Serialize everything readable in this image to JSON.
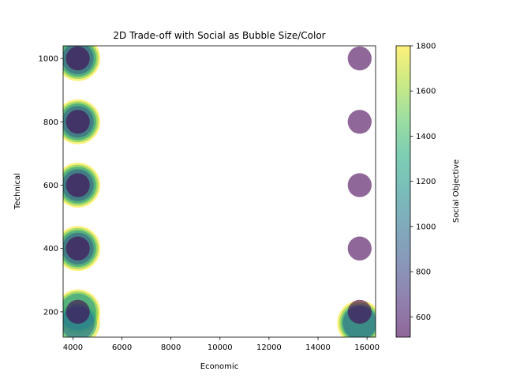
{
  "chart_data": {
    "type": "scatter",
    "title": "2D Trade-off with Social as Bubble Size/Color",
    "xlabel": "Economic",
    "ylabel": "Technical",
    "xlim": [
      3600,
      16350
    ],
    "ylim": [
      120,
      1040
    ],
    "x_ticks": [
      4000,
      6000,
      8000,
      10000,
      12000,
      14000,
      16000
    ],
    "y_ticks": [
      200,
      400,
      600,
      800,
      1000
    ],
    "grid": false,
    "colorbar": {
      "label": "Social Objective",
      "range": [
        510,
        1800
      ],
      "ticks": [
        600,
        800,
        1000,
        1200,
        1400,
        1600,
        1800
      ],
      "colormap": "viridis",
      "alpha": 0.6
    },
    "size_encoding": "Social Objective",
    "points": [
      {
        "x": 4200,
        "y": 1000,
        "social": 1800
      },
      {
        "x": 4200,
        "y": 1000,
        "social": 1500
      },
      {
        "x": 4200,
        "y": 1000,
        "social": 1200
      },
      {
        "x": 4200,
        "y": 1000,
        "social": 900
      },
      {
        "x": 4200,
        "y": 1000,
        "social": 510
      },
      {
        "x": 4200,
        "y": 800,
        "social": 1800
      },
      {
        "x": 4200,
        "y": 800,
        "social": 1500
      },
      {
        "x": 4200,
        "y": 800,
        "social": 1200
      },
      {
        "x": 4200,
        "y": 800,
        "social": 900
      },
      {
        "x": 4200,
        "y": 800,
        "social": 510
      },
      {
        "x": 4200,
        "y": 600,
        "social": 1800
      },
      {
        "x": 4200,
        "y": 600,
        "social": 1500
      },
      {
        "x": 4200,
        "y": 600,
        "social": 1200
      },
      {
        "x": 4200,
        "y": 600,
        "social": 900
      },
      {
        "x": 4200,
        "y": 600,
        "social": 510
      },
      {
        "x": 4200,
        "y": 400,
        "social": 1800
      },
      {
        "x": 4200,
        "y": 400,
        "social": 1500
      },
      {
        "x": 4200,
        "y": 400,
        "social": 1200
      },
      {
        "x": 4200,
        "y": 400,
        "social": 900
      },
      {
        "x": 4200,
        "y": 400,
        "social": 510
      },
      {
        "x": 4200,
        "y": 200,
        "social": 1800
      },
      {
        "x": 4200,
        "y": 165,
        "social": 1750
      },
      {
        "x": 4200,
        "y": 200,
        "social": 1500
      },
      {
        "x": 4200,
        "y": 165,
        "social": 1300
      },
      {
        "x": 4200,
        "y": 200,
        "social": 1200
      },
      {
        "x": 4200,
        "y": 165,
        "social": 1000
      },
      {
        "x": 4200,
        "y": 200,
        "social": 510
      },
      {
        "x": 15700,
        "y": 1000,
        "social": 510
      },
      {
        "x": 15700,
        "y": 800,
        "social": 510
      },
      {
        "x": 15700,
        "y": 600,
        "social": 510
      },
      {
        "x": 15700,
        "y": 400,
        "social": 510
      },
      {
        "x": 15700,
        "y": 165,
        "social": 1800
      },
      {
        "x": 15700,
        "y": 165,
        "social": 1500
      },
      {
        "x": 15700,
        "y": 165,
        "social": 1200
      },
      {
        "x": 15700,
        "y": 165,
        "social": 1000
      },
      {
        "x": 15700,
        "y": 200,
        "social": 510
      }
    ]
  }
}
